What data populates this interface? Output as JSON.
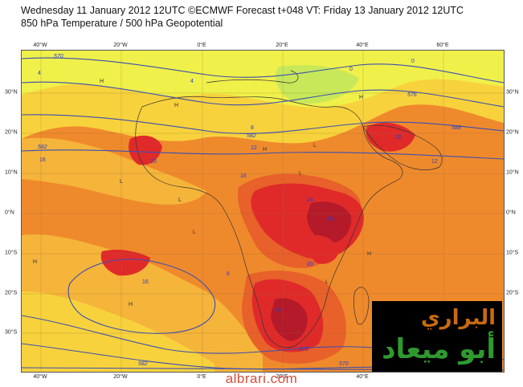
{
  "title": {
    "line1": "Wednesday 11 January 2012 12UTC ©ECMWF Forecast t+048 VT: Friday 13 January 2012 12UTC",
    "line2": "850 hPa Temperature / 500 hPa Geopotential"
  },
  "axes": {
    "longitude_ticks": [
      "40°W",
      "20°W",
      "0°E",
      "20°E",
      "40°E",
      "60°E"
    ],
    "latitude_ticks": [
      "30°N",
      "20°N",
      "10°N",
      "0°N",
      "10°S",
      "20°S",
      "30°S"
    ]
  },
  "colors": {
    "coldest_band": "#c8e85a",
    "cool_band": "#f0f04a",
    "mild_band": "#f8d23c",
    "warm_band": "#f5b43a",
    "warmer_band": "#ef8a2c",
    "hot_band": "#e8602a",
    "very_hot_band": "#e02a2a",
    "extreme_band": "#b51a2a",
    "geopotential_contour": "#3b4fb0",
    "label_color": "#2a3cc8"
  },
  "contour_labels": [
    "570",
    "576",
    "582",
    "588",
    "582",
    "576",
    "570",
    "582"
  ],
  "temperature_labels": [
    "0",
    "4",
    "8",
    "12",
    "16",
    "20",
    "24",
    "28",
    "20",
    "16",
    "12",
    "8",
    "4",
    "0",
    "24",
    "20",
    "16"
  ],
  "pressure_labels": [
    "H",
    "H",
    "H",
    "L",
    "L",
    "L",
    "H",
    "L",
    "H",
    "L",
    "H",
    "L",
    "H"
  ],
  "watermark": {
    "line1": "البراري",
    "line2": "أبو ميعاد"
  },
  "site_url": "albrari.com"
}
